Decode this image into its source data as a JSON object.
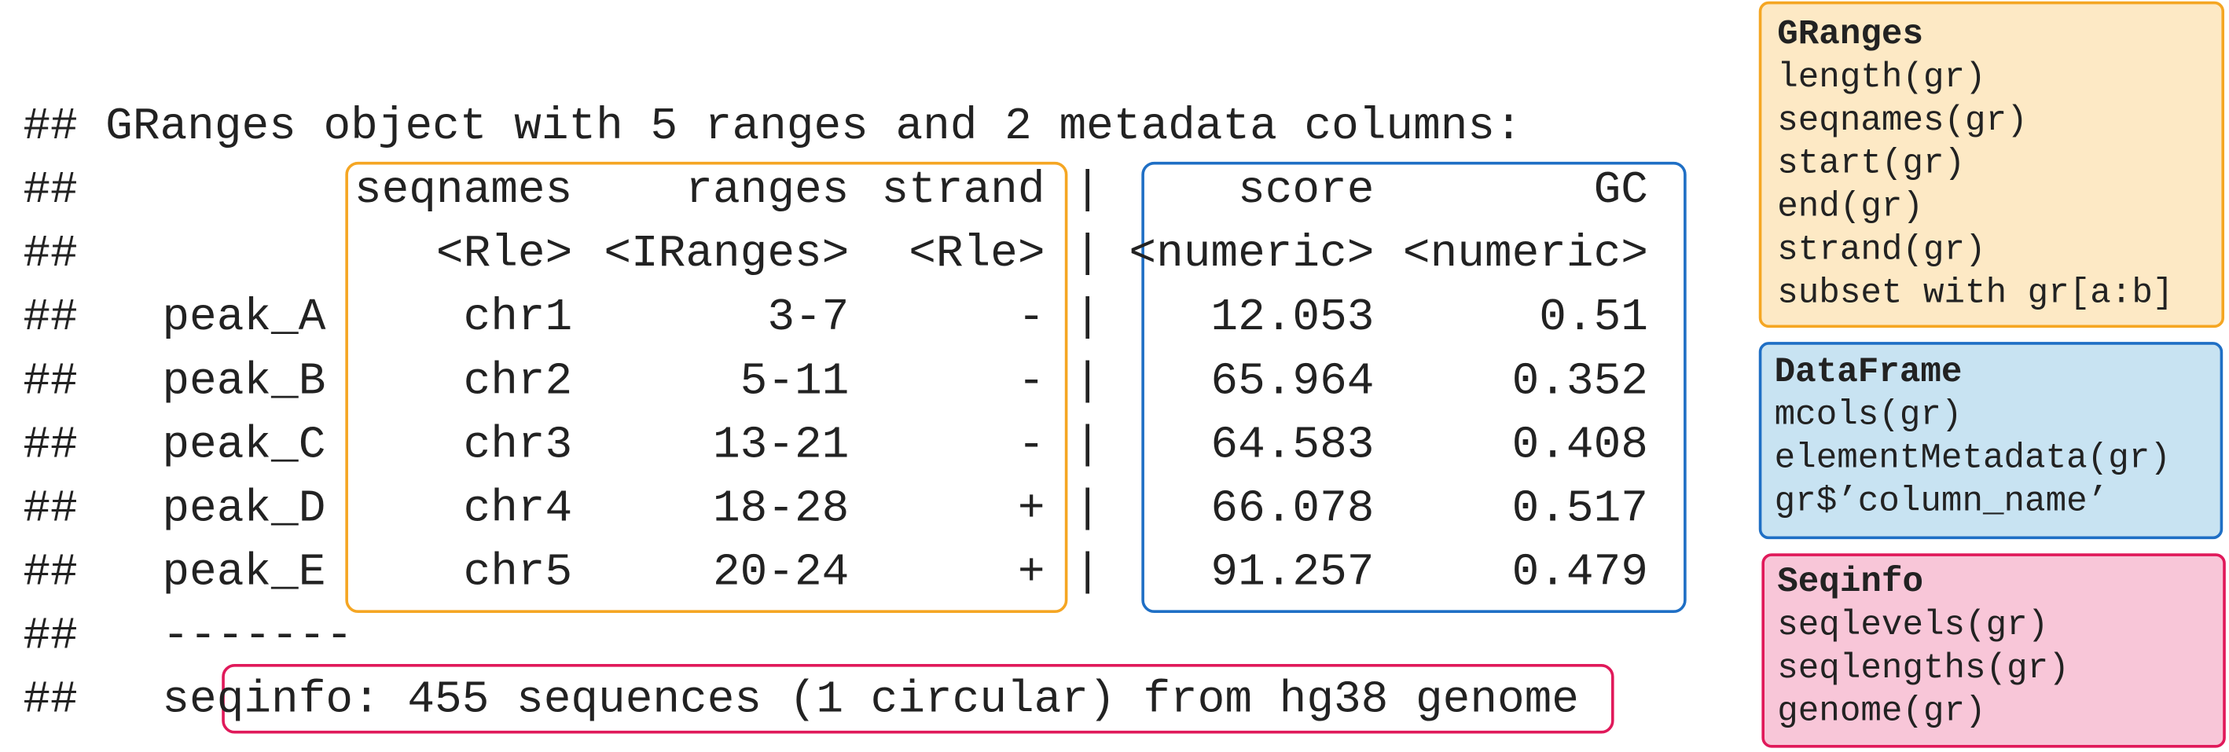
{
  "console": {
    "prefix": "##",
    "header": "GRanges object with 5 ranges and 2 metadata columns:",
    "separator": "|",
    "columns": [
      "seqnames",
      "ranges",
      "strand",
      "score",
      "GC"
    ],
    "types": [
      "<Rle>",
      "<IRanges>",
      "<Rle>",
      "<numeric>",
      "<numeric>"
    ],
    "rows": [
      [
        "peak_A",
        "chr1",
        "3-7",
        "-",
        12.053,
        0.51
      ],
      [
        "peak_B",
        "chr2",
        "5-11",
        "-",
        65.964,
        0.352
      ],
      [
        "peak_C",
        "chr3",
        "13-21",
        "-",
        64.583,
        0.408
      ],
      [
        "peak_D",
        "chr4",
        "18-28",
        "+",
        66.078,
        0.517
      ],
      [
        "peak_E",
        "chr5",
        "20-24",
        "+",
        91.257,
        0.479
      ]
    ],
    "divider": "-------",
    "seqinfo": "seqinfo: 455 sequences (1 circular) from hg38 genome"
  },
  "panels": [
    {
      "title": "GRanges",
      "items": [
        "length(gr)",
        "seqnames(gr)",
        "start(gr)",
        "end(gr)",
        "strand(gr)",
        "subset with gr[a:b]"
      ]
    },
    {
      "title": "DataFrame",
      "items": [
        "mcols(gr)",
        "elementMetadata(gr)",
        "gr$’column_name’"
      ]
    },
    {
      "title": "Seqinfo",
      "items": [
        "seqlevels(gr)",
        "seqlengths(gr)",
        "genome(gr)"
      ]
    }
  ]
}
